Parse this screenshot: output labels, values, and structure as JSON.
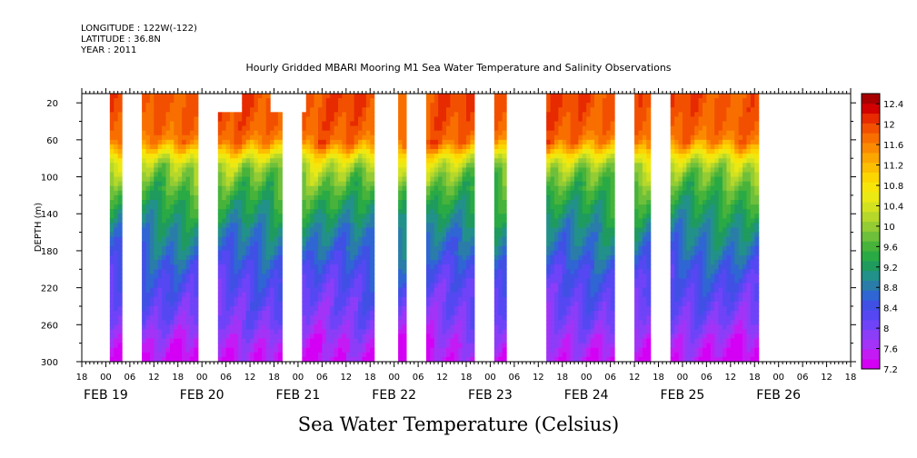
{
  "header": {
    "longitude": "LONGITUDE : 122W(-122)",
    "latitude": "LATITUDE : 36.8N",
    "year": "YEAR : 2011"
  },
  "title": "Hourly Gridded MBARI Mooring M1 Sea Water Temperature and Salinity Observations",
  "bottom_title": "Sea Water Temperature (Celsius)",
  "chart_data": {
    "type": "heatmap",
    "title": "Hourly Gridded MBARI Mooring M1 Sea Water Temperature and Salinity Observations",
    "xlabel": "",
    "ylabel": "DEPTH (m)",
    "x_unit": "hours since FEB 19 00:00, 2011",
    "xlim": [
      -6,
      186
    ],
    "ylim": [
      300,
      10
    ],
    "y_reversed": true,
    "yticks": [
      20,
      60,
      100,
      140,
      180,
      220,
      260,
      300
    ],
    "xtick_labels": [
      "18",
      "00",
      "06",
      "12",
      "18",
      "00",
      "06",
      "12",
      "18",
      "00",
      "06",
      "12",
      "18",
      "00",
      "06",
      "12",
      "18",
      "00",
      "06",
      "12",
      "18",
      "00",
      "06",
      "12",
      "18",
      "00",
      "06",
      "12",
      "18",
      "00",
      "06",
      "12",
      "18"
    ],
    "xtick_hours": [
      -6,
      0,
      6,
      12,
      18,
      24,
      30,
      36,
      42,
      48,
      54,
      60,
      66,
      72,
      78,
      84,
      90,
      96,
      102,
      108,
      114,
      120,
      126,
      132,
      138,
      144,
      150,
      156,
      162,
      168,
      174,
      180,
      186
    ],
    "day_labels": [
      "FEB 19",
      "FEB 20",
      "FEB 21",
      "FEB 22",
      "FEB 23",
      "FEB 24",
      "FEB 25",
      "FEB 26"
    ],
    "day_label_hours": [
      0,
      24,
      48,
      72,
      96,
      120,
      144,
      168
    ],
    "colorbar": {
      "levels": [
        7.2,
        7.4,
        7.6,
        7.8,
        8.0,
        8.2,
        8.4,
        8.6,
        8.8,
        9.0,
        9.2,
        9.4,
        9.6,
        9.8,
        10.0,
        10.2,
        10.4,
        10.6,
        10.8,
        11.0,
        11.2,
        11.4,
        11.6,
        11.8,
        12.0,
        12.2,
        12.4,
        12.6
      ],
      "labels": [
        "7.2",
        "7.6",
        "8",
        "8.4",
        "8.8",
        "9.2",
        "9.6",
        "10",
        "10.4",
        "10.8",
        "11.2",
        "11.6",
        "12",
        "12.4"
      ],
      "label_values": [
        7.2,
        7.6,
        8.0,
        8.4,
        8.8,
        9.2,
        9.6,
        10.0,
        10.4,
        10.8,
        11.2,
        11.6,
        12.0,
        12.4
      ]
    },
    "data_segments": [
      {
        "start_hour": 1,
        "end_hour": 4,
        "top_depth": 20
      },
      {
        "start_hour": 9,
        "end_hour": 23,
        "top_depth": 20
      },
      {
        "start_hour": 28,
        "end_hour": 34,
        "top_depth": 40
      },
      {
        "start_hour": 34,
        "end_hour": 41,
        "top_depth": 20
      },
      {
        "start_hour": 41,
        "end_hour": 44,
        "top_depth": 40
      },
      {
        "start_hour": 49,
        "end_hour": 50,
        "top_depth": 40
      },
      {
        "start_hour": 50,
        "end_hour": 67,
        "top_depth": 20
      },
      {
        "start_hour": 73,
        "end_hour": 75,
        "top_depth": 20
      },
      {
        "start_hour": 80,
        "end_hour": 92,
        "top_depth": 20
      },
      {
        "start_hour": 97,
        "end_hour": 100,
        "top_depth": 20
      },
      {
        "start_hour": 110,
        "end_hour": 127,
        "top_depth": 20
      },
      {
        "start_hour": 132,
        "end_hour": 136,
        "top_depth": 20
      },
      {
        "start_hour": 141,
        "end_hour": 163,
        "top_depth": 20
      }
    ],
    "temperature_profile": [
      {
        "depth": 20,
        "temp": 12.1
      },
      {
        "depth": 50,
        "temp": 12.0
      },
      {
        "depth": 62,
        "temp": 11.8
      },
      {
        "depth": 70,
        "temp": 11.4
      },
      {
        "depth": 78,
        "temp": 10.8
      },
      {
        "depth": 88,
        "temp": 10.3
      },
      {
        "depth": 100,
        "temp": 10.0
      },
      {
        "depth": 120,
        "temp": 9.6
      },
      {
        "depth": 140,
        "temp": 9.3
      },
      {
        "depth": 160,
        "temp": 9.0
      },
      {
        "depth": 180,
        "temp": 8.8
      },
      {
        "depth": 200,
        "temp": 8.5
      },
      {
        "depth": 220,
        "temp": 8.3
      },
      {
        "depth": 240,
        "temp": 8.1
      },
      {
        "depth": 260,
        "temp": 7.9
      },
      {
        "depth": 280,
        "temp": 7.6
      },
      {
        "depth": 300,
        "temp": 7.4
      }
    ]
  }
}
